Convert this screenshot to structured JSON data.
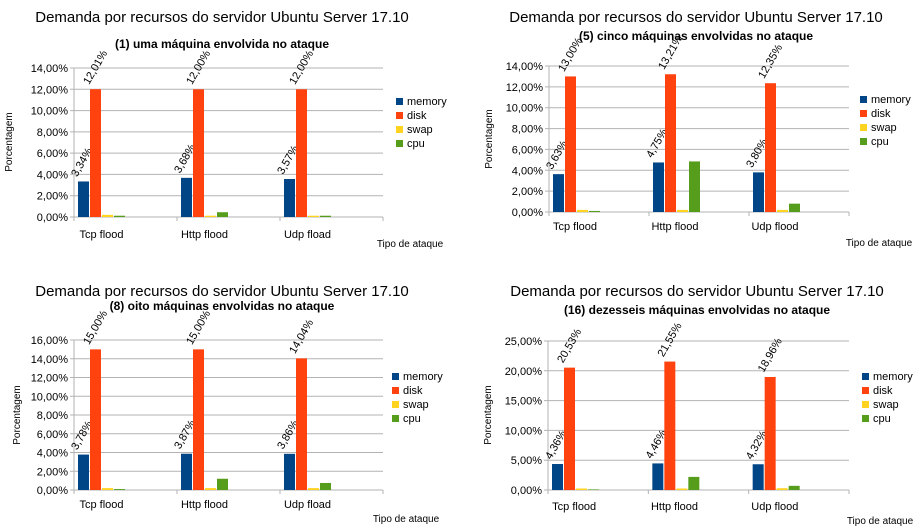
{
  "legend": [
    {
      "key": "memory",
      "label": "memory",
      "color": "#004586"
    },
    {
      "key": "disk",
      "label": "disk",
      "color": "#ff420e"
    },
    {
      "key": "swap",
      "label": "swap",
      "color": "#ffd320"
    },
    {
      "key": "cpu",
      "label": "cpu",
      "color": "#579d1c"
    }
  ],
  "chart_data": [
    {
      "type": "bar",
      "title": "Demanda por recursos do servidor Ubuntu Server 17.10",
      "subtitle": "(1) uma máquina envolvida no ataque",
      "xlabel": "Tipo de ataque",
      "ylabel": "Porcentagem",
      "ylim": [
        0,
        14
      ],
      "yticks": [
        0,
        2,
        4,
        6,
        8,
        10,
        12,
        14
      ],
      "ytick_labels": [
        "0,00%",
        "2,00%",
        "4,00%",
        "6,00%",
        "8,00%",
        "10,00%",
        "12,00%",
        "14,00%"
      ],
      "grid": true,
      "legend_position": "right",
      "categories": [
        "Tcp flood",
        "Http flood",
        "Udp fload"
      ],
      "series": [
        {
          "name": "memory",
          "values": [
            3.34,
            3.68,
            3.57
          ],
          "labels": [
            "3,34%",
            "3,68%",
            "3,57%"
          ]
        },
        {
          "name": "disk",
          "values": [
            12.01,
            12.0,
            12.0
          ],
          "labels": [
            "12,01%",
            "12,00%",
            "12,00%"
          ]
        },
        {
          "name": "swap",
          "values": [
            0.2,
            0.12,
            0.12
          ],
          "labels": [
            "",
            "",
            ""
          ]
        },
        {
          "name": "cpu",
          "values": [
            0.12,
            0.45,
            0.12
          ],
          "labels": [
            "",
            "",
            ""
          ]
        }
      ]
    },
    {
      "type": "bar",
      "title": "Demanda por recursos do servidor Ubuntu Server 17.10",
      "subtitle": "(5) cinco máquinas envolvidas no ataque",
      "xlabel": "Tipo de ataque",
      "ylabel": "Porcentagem",
      "ylim": [
        0,
        14
      ],
      "yticks": [
        0,
        2,
        4,
        6,
        8,
        10,
        12,
        14
      ],
      "ytick_labels": [
        "0,00%",
        "2,00%",
        "4,00%",
        "6,00%",
        "8,00%",
        "10,00%",
        "12,00%",
        "14,00%"
      ],
      "grid": true,
      "legend_position": "right",
      "categories": [
        "Tcp flood",
        "Http flood",
        "Udp flood"
      ],
      "series": [
        {
          "name": "memory",
          "values": [
            3.63,
            4.75,
            3.8
          ],
          "labels": [
            "3,63%",
            "4,75%",
            "3,80%"
          ]
        },
        {
          "name": "disk",
          "values": [
            13.0,
            13.21,
            12.35
          ],
          "labels": [
            "13,00%",
            "13,21%",
            "12,35%"
          ]
        },
        {
          "name": "swap",
          "values": [
            0.2,
            0.2,
            0.2
          ],
          "labels": [
            "",
            "",
            ""
          ]
        },
        {
          "name": "cpu",
          "values": [
            0.1,
            4.85,
            0.8
          ],
          "labels": [
            "",
            "",
            ""
          ]
        }
      ]
    },
    {
      "type": "bar",
      "title": "Demanda por recursos do servidor Ubuntu Server 17.10",
      "subtitle": "(8) oito  máquinas envolvidas no ataque",
      "xlabel": "Tipo de ataque",
      "ylabel": "Porcentagem",
      "ylim": [
        0,
        16
      ],
      "yticks": [
        0,
        2,
        4,
        6,
        8,
        10,
        12,
        14,
        16
      ],
      "ytick_labels": [
        "0,00%",
        "2,00%",
        "4,00%",
        "6,00%",
        "8,00%",
        "10,00%",
        "12,00%",
        "14,00%",
        "16,00%"
      ],
      "grid": true,
      "legend_position": "right",
      "categories": [
        "Tcp flood",
        "Http flood",
        "Udp fload"
      ],
      "series": [
        {
          "name": "memory",
          "values": [
            3.78,
            3.87,
            3.86
          ],
          "labels": [
            "3,78%",
            "3,87%",
            "3,86%"
          ]
        },
        {
          "name": "disk",
          "values": [
            15.0,
            15.0,
            14.04
          ],
          "labels": [
            "15,00%",
            "15,00%",
            "14,04%"
          ]
        },
        {
          "name": "swap",
          "values": [
            0.2,
            0.2,
            0.2
          ],
          "labels": [
            "",
            "",
            ""
          ]
        },
        {
          "name": "cpu",
          "values": [
            0.1,
            1.2,
            0.75
          ],
          "labels": [
            "",
            "",
            ""
          ]
        }
      ]
    },
    {
      "type": "bar",
      "title": "Demanda por recursos do servidor Ubuntu Server 17.10",
      "subtitle": "(16) dezesseis máquinas envolvidas no ataque",
      "xlabel": "Tipo de ataque",
      "ylabel": "Porcentagem",
      "ylim": [
        0,
        25
      ],
      "yticks": [
        0,
        5,
        10,
        15,
        20,
        25
      ],
      "ytick_labels": [
        "0,00%",
        "5,00%",
        "10,00%",
        "15,00%",
        "20,00%",
        "25,00%"
      ],
      "grid": true,
      "legend_position": "right",
      "categories": [
        "Tcp flood",
        "Http flood",
        "Udp flood"
      ],
      "series": [
        {
          "name": "memory",
          "values": [
            4.36,
            4.46,
            4.32
          ],
          "labels": [
            "4,36%",
            "4,46%",
            "4,32%"
          ]
        },
        {
          "name": "disk",
          "values": [
            20.53,
            21.55,
            18.96
          ],
          "labels": [
            "20,53%",
            "21,55%",
            "18,96%"
          ]
        },
        {
          "name": "swap",
          "values": [
            0.25,
            0.25,
            0.3
          ],
          "labels": [
            "",
            "",
            ""
          ]
        },
        {
          "name": "cpu",
          "values": [
            0.1,
            2.2,
            0.7
          ],
          "labels": [
            "",
            "",
            ""
          ]
        }
      ]
    }
  ]
}
